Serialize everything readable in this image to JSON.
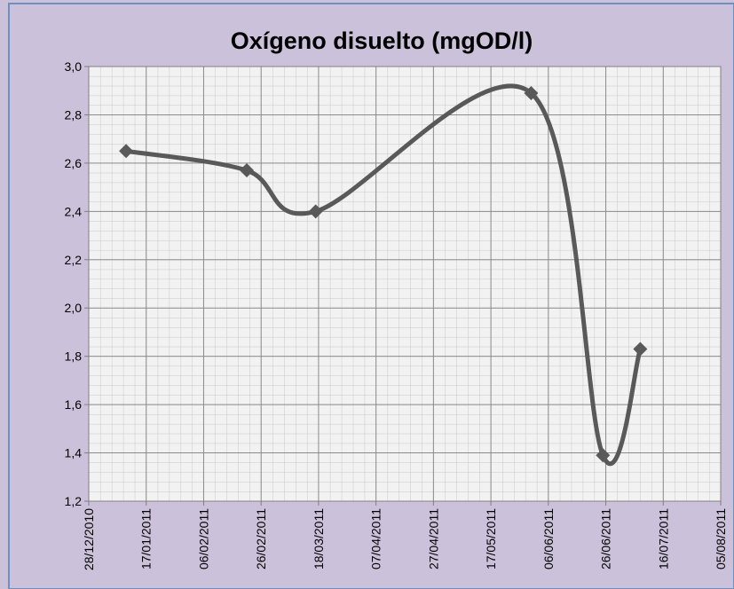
{
  "chart_data": {
    "type": "line",
    "title": "Oxígeno disuelto (mgOD/l)",
    "x": [
      "10/01/2011",
      "21/02/2011",
      "17/03/2011",
      "31/05/2011",
      "25/06/2011",
      "08/07/2011"
    ],
    "series": [
      {
        "name": "Oxígeno disuelto",
        "color": "#595959",
        "values": [
          2.65,
          2.57,
          2.4,
          2.89,
          1.39,
          1.83
        ]
      }
    ],
    "xlim": [
      "28/12/2010",
      "05/08/2011"
    ],
    "xticks": [
      "28/12/2010",
      "17/01/2011",
      "06/02/2011",
      "26/02/2011",
      "18/03/2011",
      "07/04/2011",
      "27/04/2011",
      "17/05/2011",
      "06/06/2011",
      "26/06/2011",
      "16/07/2011",
      "05/08/2011"
    ],
    "ylim": [
      1.2,
      3.0
    ],
    "yticks": [
      {
        "value": 1.2,
        "label": "1,2"
      },
      {
        "value": 1.4,
        "label": "1,4"
      },
      {
        "value": 1.6,
        "label": "1,6"
      },
      {
        "value": 1.8,
        "label": "1,8"
      },
      {
        "value": 2.0,
        "label": "2,0"
      },
      {
        "value": 2.2,
        "label": "2,2"
      },
      {
        "value": 2.4,
        "label": "2,4"
      },
      {
        "value": 2.6,
        "label": "2,6"
      },
      {
        "value": 2.8,
        "label": "2,8"
      },
      {
        "value": 3.0,
        "label": "3,0"
      }
    ],
    "grid": true,
    "smooth": true
  }
}
